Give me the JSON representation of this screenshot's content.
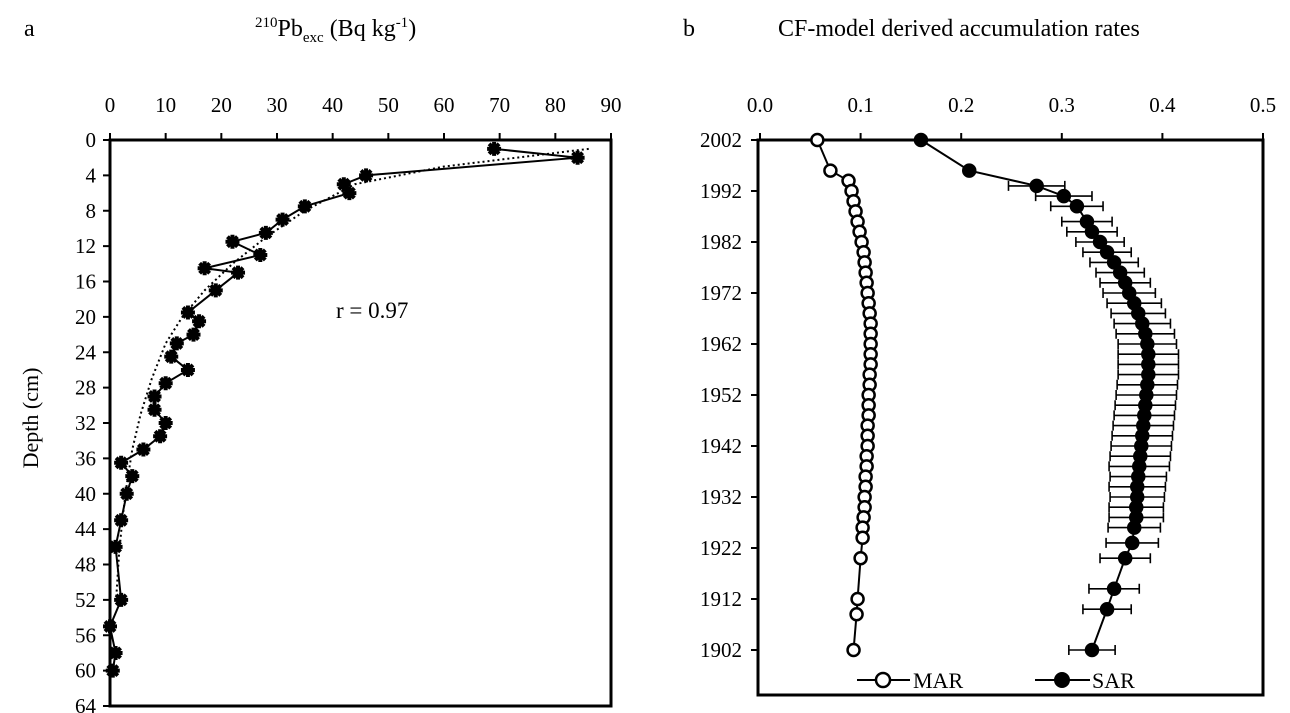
{
  "panel_a": {
    "letter": "a",
    "title_sup": "210",
    "title_main": "Pb",
    "title_sub": "exc",
    "title_unit": " (Bq kg",
    "title_unit_sup": "-1",
    "title_close": ")",
    "ylabel": "Depth (cm)",
    "annotation": "r = 0.97"
  },
  "panel_b": {
    "letter": "b",
    "title": "CF-model derived accumulation rates",
    "legend": [
      "MAR",
      "SAR"
    ]
  },
  "colors": {
    "axis": "#000000",
    "sar_marker": "#000000",
    "mar_marker": "#ffffff"
  },
  "chart_data": [
    {
      "type": "scatter",
      "panel": "a",
      "title": "210Pbexc (Bq kg-1)",
      "xlabel": "",
      "ylabel": "Depth (cm)",
      "xlim": [
        0,
        90
      ],
      "ylim": [
        64,
        0
      ],
      "x_axis_position": "top",
      "grid": false,
      "x_ticks": [
        0,
        10,
        20,
        30,
        40,
        50,
        60,
        70,
        80,
        90
      ],
      "y_ticks": [
        0,
        4,
        8,
        12,
        16,
        20,
        24,
        28,
        32,
        36,
        40,
        44,
        48,
        52,
        56,
        60,
        64
      ],
      "series": [
        {
          "style": "line-with-cross-markers",
          "x": [
            69,
            84,
            46,
            42,
            43,
            35,
            31,
            28,
            22,
            27,
            17,
            23,
            19,
            14,
            16,
            15,
            12,
            11,
            14,
            10,
            8,
            8,
            10,
            9,
            6,
            2,
            4,
            3,
            2,
            1,
            2,
            0,
            1,
            0.5
          ],
          "y": [
            1,
            2,
            4,
            5,
            6,
            7.5,
            9,
            10.5,
            11.5,
            13,
            14.5,
            15,
            17,
            19.5,
            20.5,
            22,
            23,
            24.5,
            26,
            27.5,
            29,
            30.5,
            32,
            33.5,
            35,
            36.5,
            38,
            40,
            43,
            46,
            52,
            55,
            58,
            60
          ]
        },
        {
          "style": "dotted-fit",
          "x": [
            86,
            60,
            44,
            35,
            28,
            22,
            17,
            13,
            10,
            7.5,
            5.5,
            4,
            3,
            2.2,
            1.6,
            1.1
          ],
          "y": [
            1,
            3,
            5,
            8,
            11,
            14,
            17,
            20,
            23,
            27,
            31,
            35,
            39,
            43,
            47,
            52
          ]
        }
      ]
    },
    {
      "type": "line",
      "panel": "b",
      "title": "CF-model derived accumulation rates",
      "xlabel": "",
      "ylabel": "",
      "xlim": [
        0.0,
        0.5
      ],
      "ylim": [
        2004,
        1896
      ],
      "x_axis_position": "top",
      "grid": false,
      "legend": "bottom",
      "x_ticks": [
        "0.0",
        "0.1",
        "0.2",
        "0.3",
        "0.4",
        "0.5"
      ],
      "y_ticks": [
        2002,
        1992,
        1982,
        1972,
        1962,
        1952,
        1942,
        1932,
        1922,
        1912,
        1902
      ],
      "series": [
        {
          "name": "MAR",
          "marker": "open-circle",
          "year": [
            2002,
            1996,
            1994,
            1992,
            1990,
            1988,
            1986,
            1984,
            1982,
            1980,
            1978,
            1976,
            1974,
            1972,
            1970,
            1968,
            1966,
            1964,
            1962,
            1960,
            1958,
            1956,
            1954,
            1952,
            1950,
            1948,
            1946,
            1944,
            1942,
            1940,
            1938,
            1936,
            1934,
            1932,
            1930,
            1928,
            1926,
            1924,
            1920,
            1912,
            1909,
            1902
          ],
          "value": [
            0.057,
            0.07,
            0.088,
            0.091,
            0.093,
            0.095,
            0.097,
            0.099,
            0.101,
            0.103,
            0.104,
            0.105,
            0.106,
            0.107,
            0.108,
            0.109,
            0.11,
            0.11,
            0.11,
            0.11,
            0.11,
            0.109,
            0.109,
            0.108,
            0.108,
            0.108,
            0.107,
            0.107,
            0.107,
            0.106,
            0.106,
            0.105,
            0.105,
            0.104,
            0.104,
            0.103,
            0.102,
            0.102,
            0.1,
            0.097,
            0.096,
            0.093
          ]
        },
        {
          "name": "SAR",
          "marker": "filled-circle",
          "year": [
            2002,
            1996,
            1993,
            1991,
            1989,
            1986,
            1984,
            1982,
            1980,
            1978,
            1976,
            1974,
            1972,
            1970,
            1968,
            1966,
            1964,
            1962,
            1960,
            1958,
            1956,
            1954,
            1952,
            1950,
            1948,
            1946,
            1944,
            1942,
            1940,
            1938,
            1936,
            1934,
            1932,
            1930,
            1928,
            1926,
            1923,
            1920,
            1914,
            1910,
            1902
          ],
          "value": [
            0.16,
            0.208,
            0.275,
            0.302,
            0.315,
            0.325,
            0.33,
            0.338,
            0.345,
            0.352,
            0.358,
            0.363,
            0.367,
            0.372,
            0.376,
            0.38,
            0.383,
            0.385,
            0.386,
            0.386,
            0.386,
            0.385,
            0.384,
            0.383,
            0.382,
            0.381,
            0.38,
            0.379,
            0.378,
            0.377,
            0.376,
            0.375,
            0.375,
            0.374,
            0.374,
            0.372,
            0.37,
            0.363,
            0.352,
            0.345,
            0.33
          ],
          "error": [
            0.0,
            0.0,
            0.028,
            0.028,
            0.026,
            0.025,
            0.025,
            0.024,
            0.024,
            0.024,
            0.024,
            0.025,
            0.026,
            0.027,
            0.027,
            0.028,
            0.029,
            0.029,
            0.03,
            0.03,
            0.03,
            0.03,
            0.03,
            0.03,
            0.03,
            0.03,
            0.03,
            0.03,
            0.03,
            0.03,
            0.028,
            0.028,
            0.027,
            0.027,
            0.027,
            0.026,
            0.026,
            0.025,
            0.025,
            0.024,
            0.023
          ]
        }
      ]
    }
  ]
}
